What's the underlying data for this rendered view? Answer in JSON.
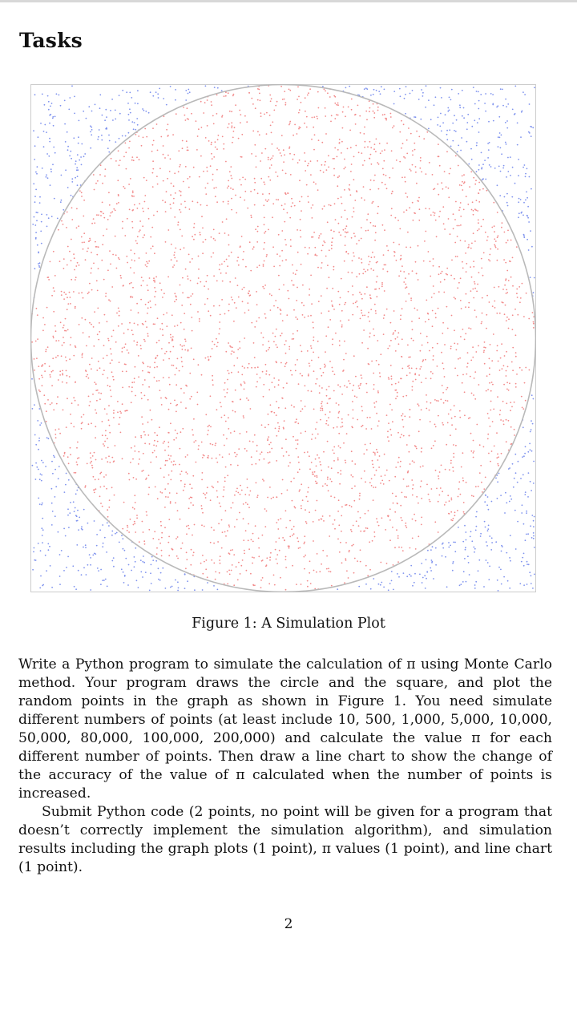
{
  "page": {
    "heading": "Tasks",
    "page_number": "2"
  },
  "figure": {
    "caption": "Figure 1: A Simulation Plot",
    "colors": {
      "inside_points": "#f28a8a",
      "outside_points": "#7f93ee",
      "circle": "#b9b9b9",
      "square": "#cccccc"
    }
  },
  "body": {
    "paragraph_1": "Write a Python program to simulate the calculation of π using Monte Carlo method. Your program draws the circle and the square, and plot the random points in the graph as shown in Figure 1. You need simulate different numbers of points (at least include 10, 500, 1,000, 5,000, 10,000, 50,000, 80,000, 100,000, 200,000) and calculate the value π for each different number of points. Then draw a line chart to show the change of the accuracy of the value of π calculated when the number of points is increased.",
    "paragraph_2": "Submit Python code (2 points, no point will be given for a program that doesn’t correctly implement the simulation algorithm), and simulation results including the graph plots (1 point), π values (1 point), and line chart (1 point)."
  }
}
